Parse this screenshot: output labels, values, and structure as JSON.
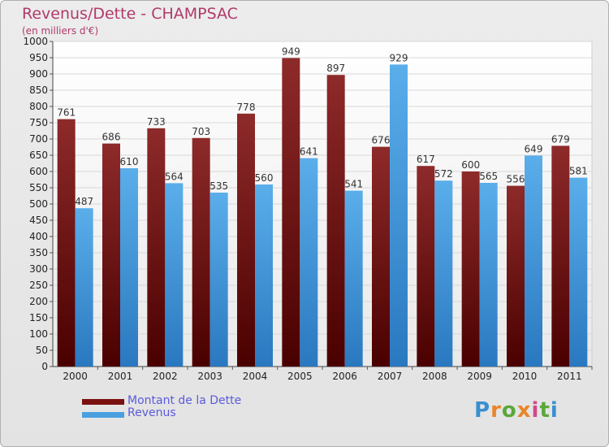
{
  "chart_data": {
    "type": "bar",
    "title": "Revenus/Dette - CHAMPSAC",
    "subtitle": "(en milliers d'€)",
    "categories": [
      "2000",
      "2001",
      "2002",
      "2003",
      "2004",
      "2005",
      "2006",
      "2007",
      "2008",
      "2009",
      "2010",
      "2011"
    ],
    "series": [
      {
        "name": "Montant de la Dette",
        "color": "#7a1010",
        "values": [
          761,
          686,
          733,
          703,
          778,
          949,
          897,
          676,
          617,
          600,
          556,
          679
        ]
      },
      {
        "name": "Revenus",
        "color": "#4a9fe0",
        "values": [
          487,
          610,
          564,
          535,
          560,
          641,
          541,
          929,
          572,
          565,
          649,
          581
        ]
      }
    ],
    "ylim": [
      0,
      1000
    ],
    "ytick_step": 50,
    "grid": true,
    "legend": "bottom-left"
  },
  "logo_text": "Proxiti"
}
